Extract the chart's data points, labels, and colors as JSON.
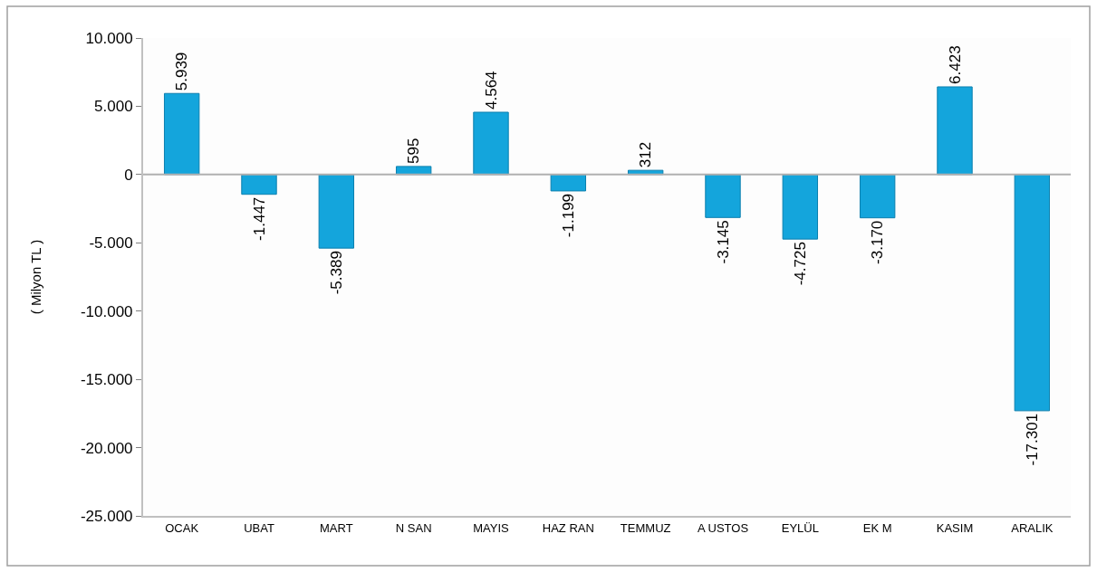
{
  "chart_data": {
    "type": "bar",
    "ylabel": "( Milyon TL )",
    "categories": [
      "OCAK",
      "UBAT",
      "MART",
      "N SAN",
      "MAYIS",
      "HAZ RAN",
      "TEMMUZ",
      "A USTOS",
      "EYLÜL",
      "EK M",
      "KASIM",
      "ARALIK"
    ],
    "values": [
      5939,
      -1447,
      -5389,
      595,
      4564,
      -1199,
      312,
      -3145,
      -4725,
      -3170,
      6423,
      -17301
    ],
    "value_labels": [
      "5.939",
      "-1.447",
      "-5.389",
      "595",
      "4.564",
      "-1.199",
      "312",
      "-3.145",
      "-4.725",
      "-3.170",
      "6.423",
      "-17.301"
    ],
    "color": "#14a5dc",
    "ylim": [
      -25000,
      10000
    ],
    "yticks": [
      {
        "value": -25000,
        "label": "-25.000"
      },
      {
        "value": -20000,
        "label": "-20.000"
      },
      {
        "value": -15000,
        "label": "-15.000"
      },
      {
        "value": -10000,
        "label": "-10.000"
      },
      {
        "value": -5000,
        "label": "-5.000"
      },
      {
        "value": 0,
        "label": "0"
      },
      {
        "value": 5000,
        "label": "5.000"
      },
      {
        "value": 10000,
        "label": "10.000"
      }
    ],
    "ref_lines": [
      {
        "axis": "y",
        "value": 0,
        "color": "#b0b0b0"
      }
    ],
    "grid": false,
    "legend": false
  }
}
